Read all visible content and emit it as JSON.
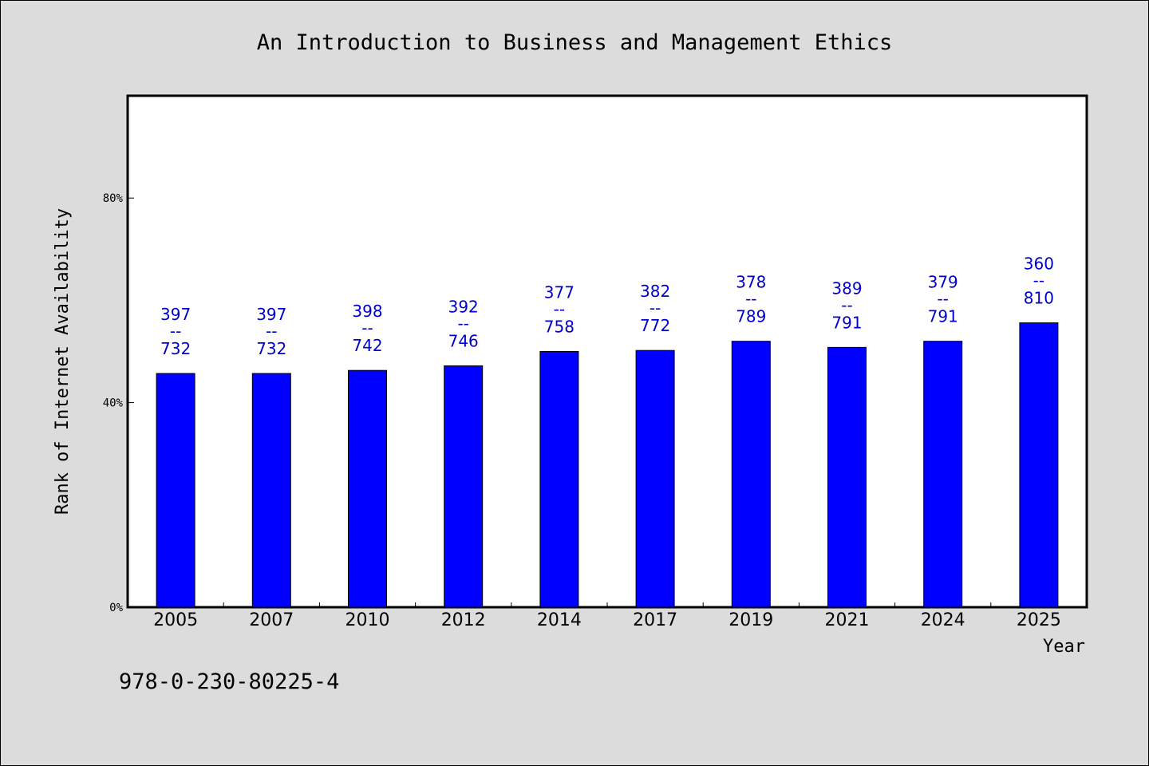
{
  "chart_data": {
    "type": "bar",
    "title": "An Introduction to Business and Management Ethics",
    "xlabel": "Year",
    "ylabel": "Rank of Internet Availability",
    "categories": [
      "2005",
      "2007",
      "2010",
      "2012",
      "2014",
      "2017",
      "2019",
      "2021",
      "2024",
      "2025"
    ],
    "values": [
      45.7,
      45.7,
      46.3,
      47.2,
      50.0,
      50.2,
      52.0,
      50.8,
      52.0,
      55.6
    ],
    "labels_top": [
      "397",
      "397",
      "398",
      "392",
      "377",
      "382",
      "378",
      "389",
      "379",
      "360"
    ],
    "labels_sep": "--",
    "labels_bottom": [
      "732",
      "732",
      "742",
      "746",
      "758",
      "772",
      "789",
      "791",
      "791",
      "810"
    ],
    "ylim": [
      0,
      100
    ],
    "yticks": [
      0,
      40,
      80
    ],
    "ytick_labels": [
      "0%",
      "40%",
      "80%"
    ],
    "grid": false,
    "bar_color": "#0000ff",
    "label_color": "#0000cc"
  },
  "footer": {
    "isbn": "978-0-230-80225-4"
  }
}
